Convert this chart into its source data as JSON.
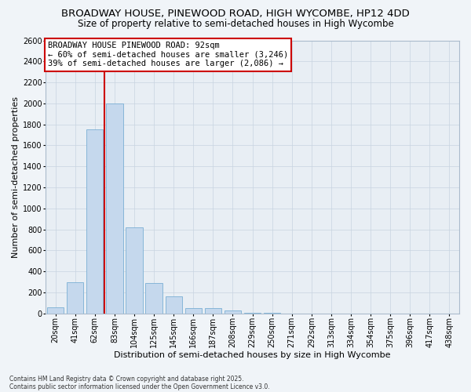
{
  "title_line1": "BROADWAY HOUSE, PINEWOOD ROAD, HIGH WYCOMBE, HP12 4DD",
  "title_line2": "Size of property relative to semi-detached houses in High Wycombe",
  "xlabel": "Distribution of semi-detached houses by size in High Wycombe",
  "ylabel": "Number of semi-detached properties",
  "categories": [
    "20sqm",
    "41sqm",
    "62sqm",
    "83sqm",
    "104sqm",
    "125sqm",
    "145sqm",
    "166sqm",
    "187sqm",
    "208sqm",
    "229sqm",
    "250sqm",
    "271sqm",
    "292sqm",
    "313sqm",
    "334sqm",
    "354sqm",
    "375sqm",
    "396sqm",
    "417sqm",
    "438sqm"
  ],
  "values": [
    55,
    300,
    1750,
    2000,
    820,
    290,
    160,
    50,
    50,
    30,
    8,
    4,
    2,
    1,
    0,
    0,
    0,
    0,
    0,
    0,
    0
  ],
  "bar_color": "#c5d8ed",
  "bar_edge_color": "#7aafd4",
  "vline_color": "#cc0000",
  "vline_pos": 2.5,
  "annotation_text": "BROADWAY HOUSE PINEWOOD ROAD: 92sqm\n← 60% of semi-detached houses are smaller (3,246)\n39% of semi-detached houses are larger (2,086) →",
  "annotation_box_facecolor": "#ffffff",
  "annotation_box_edgecolor": "#cc0000",
  "ylim": [
    0,
    2600
  ],
  "yticks": [
    0,
    200,
    400,
    600,
    800,
    1000,
    1200,
    1400,
    1600,
    1800,
    2000,
    2200,
    2400,
    2600
  ],
  "ax_facecolor": "#e8eef4",
  "fig_facecolor": "#f0f4f8",
  "grid_color": "#c8d4e0",
  "footer": "Contains HM Land Registry data © Crown copyright and database right 2025.\nContains public sector information licensed under the Open Government Licence v3.0.",
  "title_fontsize": 9.5,
  "subtitle_fontsize": 8.5,
  "axis_label_fontsize": 8,
  "tick_fontsize": 7,
  "annotation_fontsize": 7.5,
  "footer_fontsize": 5.5
}
